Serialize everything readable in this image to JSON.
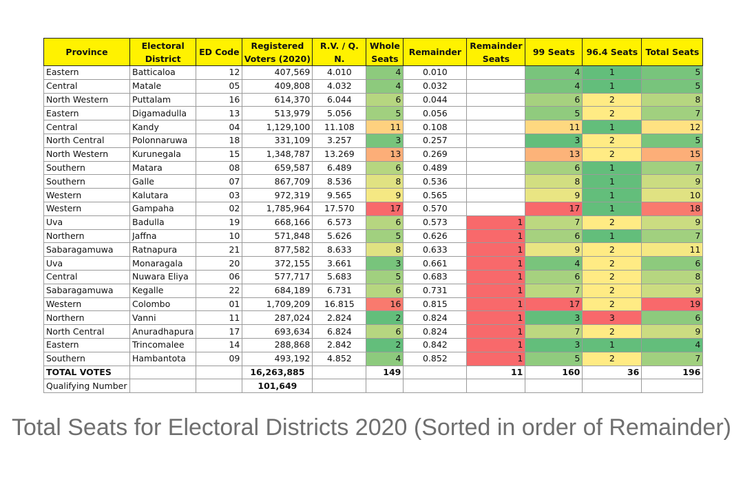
{
  "headers": {
    "province": "Province",
    "district": "Electoral District",
    "ed_code": "ED Code",
    "registered": "Registered Voters (2020)",
    "rvqn": "R.V. / Q. N.",
    "whole": "Whole Seats",
    "remainder": "Remainder",
    "remainder_seats": "Remainder Seats",
    "s99": "99 Seats",
    "s964": "96.4 Seats",
    "total": "Total Seats"
  },
  "rows": [
    {
      "province": "Eastern",
      "district": "Batticaloa",
      "code": "12",
      "voters": "407,569",
      "rvqn": "4.010",
      "whole": "4",
      "remainder": "0.010",
      "rem_seats": "",
      "s99": "4",
      "s964": "1",
      "total": "5"
    },
    {
      "province": "Central",
      "district": "Matale",
      "code": "05",
      "voters": "409,808",
      "rvqn": "4.032",
      "whole": "4",
      "remainder": "0.032",
      "rem_seats": "",
      "s99": "4",
      "s964": "1",
      "total": "5"
    },
    {
      "province": "North Western",
      "district": "Puttalam",
      "code": "16",
      "voters": "614,370",
      "rvqn": "6.044",
      "whole": "6",
      "remainder": "0.044",
      "rem_seats": "",
      "s99": "6",
      "s964": "2",
      "total": "8"
    },
    {
      "province": "Eastern",
      "district": "Digamadulla",
      "code": "13",
      "voters": "513,979",
      "rvqn": "5.056",
      "whole": "5",
      "remainder": "0.056",
      "rem_seats": "",
      "s99": "5",
      "s964": "2",
      "total": "7"
    },
    {
      "province": "Central",
      "district": "Kandy",
      "code": "04",
      "voters": "1,129,100",
      "rvqn": "11.108",
      "whole": "11",
      "remainder": "0.108",
      "rem_seats": "",
      "s99": "11",
      "s964": "1",
      "total": "12"
    },
    {
      "province": "North Central",
      "district": "Polonnaruwa",
      "code": "18",
      "voters": "331,109",
      "rvqn": "3.257",
      "whole": "3",
      "remainder": "0.257",
      "rem_seats": "",
      "s99": "3",
      "s964": "2",
      "total": "5"
    },
    {
      "province": "North Western",
      "district": "Kurunegala",
      "code": "15",
      "voters": "1,348,787",
      "rvqn": "13.269",
      "whole": "13",
      "remainder": "0.269",
      "rem_seats": "",
      "s99": "13",
      "s964": "2",
      "total": "15"
    },
    {
      "province": "Southern",
      "district": "Matara",
      "code": "08",
      "voters": "659,587",
      "rvqn": "6.489",
      "whole": "6",
      "remainder": "0.489",
      "rem_seats": "",
      "s99": "6",
      "s964": "1",
      "total": "7"
    },
    {
      "province": "Southern",
      "district": "Galle",
      "code": "07",
      "voters": "867,709",
      "rvqn": "8.536",
      "whole": "8",
      "remainder": "0.536",
      "rem_seats": "",
      "s99": "8",
      "s964": "1",
      "total": "9"
    },
    {
      "province": "Western",
      "district": "Kalutara",
      "code": "03",
      "voters": "972,319",
      "rvqn": "9.565",
      "whole": "9",
      "remainder": "0.565",
      "rem_seats": "",
      "s99": "9",
      "s964": "1",
      "total": "10"
    },
    {
      "province": "Western",
      "district": "Gampaha",
      "code": "02",
      "voters": "1,785,964",
      "rvqn": "17.570",
      "whole": "17",
      "remainder": "0.570",
      "rem_seats": "",
      "s99": "17",
      "s964": "1",
      "total": "18"
    },
    {
      "province": "Uva",
      "district": "Badulla",
      "code": "19",
      "voters": "668,166",
      "rvqn": "6.573",
      "whole": "6",
      "remainder": "0.573",
      "rem_seats": "1",
      "s99": "7",
      "s964": "2",
      "total": "9"
    },
    {
      "province": "Northern",
      "district": "Jaffna",
      "code": "10",
      "voters": "571,848",
      "rvqn": "5.626",
      "whole": "5",
      "remainder": "0.626",
      "rem_seats": "1",
      "s99": "6",
      "s964": "1",
      "total": "7"
    },
    {
      "province": "Sabaragamuwa",
      "district": "Ratnapura",
      "code": "21",
      "voters": "877,582",
      "rvqn": "8.633",
      "whole": "8",
      "remainder": "0.633",
      "rem_seats": "1",
      "s99": "9",
      "s964": "2",
      "total": "11"
    },
    {
      "province": "Uva",
      "district": "Monaragala",
      "code": "20",
      "voters": "372,155",
      "rvqn": "3.661",
      "whole": "3",
      "remainder": "0.661",
      "rem_seats": "1",
      "s99": "4",
      "s964": "2",
      "total": "6"
    },
    {
      "province": "Central",
      "district": "Nuwara Eliya",
      "code": "06",
      "voters": "577,717",
      "rvqn": "5.683",
      "whole": "5",
      "remainder": "0.683",
      "rem_seats": "1",
      "s99": "6",
      "s964": "2",
      "total": "8"
    },
    {
      "province": "Sabaragamuwa",
      "district": "Kegalle",
      "code": "22",
      "voters": "684,189",
      "rvqn": "6.731",
      "whole": "6",
      "remainder": "0.731",
      "rem_seats": "1",
      "s99": "7",
      "s964": "2",
      "total": "9"
    },
    {
      "province": "Western",
      "district": "Colombo",
      "code": "01",
      "voters": "1,709,209",
      "rvqn": "16.815",
      "whole": "16",
      "remainder": "0.815",
      "rem_seats": "1",
      "s99": "17",
      "s964": "2",
      "total": "19"
    },
    {
      "province": "Northern",
      "district": "Vanni",
      "code": "11",
      "voters": "287,024",
      "rvqn": "2.824",
      "whole": "2",
      "remainder": "0.824",
      "rem_seats": "1",
      "s99": "3",
      "s964": "3",
      "total": "6"
    },
    {
      "province": "North Central",
      "district": "Anuradhapura",
      "code": "17",
      "voters": "693,634",
      "rvqn": "6.824",
      "whole": "6",
      "remainder": "0.824",
      "rem_seats": "1",
      "s99": "7",
      "s964": "2",
      "total": "9"
    },
    {
      "province": "Eastern",
      "district": "Trincomalee",
      "code": "14",
      "voters": "288,868",
      "rvqn": "2.842",
      "whole": "2",
      "remainder": "0.842",
      "rem_seats": "1",
      "s99": "3",
      "s964": "1",
      "total": "4"
    },
    {
      "province": "Southern",
      "district": "Hambantota",
      "code": "09",
      "voters": "493,192",
      "rvqn": "4.852",
      "whole": "4",
      "remainder": "0.852",
      "rem_seats": "1",
      "s99": "5",
      "s964": "2",
      "total": "7"
    }
  ],
  "totals": {
    "label": "TOTAL VOTES",
    "voters": "16,263,885",
    "whole": "149",
    "rem_seats": "11",
    "s99": "160",
    "s964": "36",
    "total": "196"
  },
  "qualifying": {
    "label": "Qualifying Number",
    "value": "101,649"
  },
  "caption": "Total Seats for Electoral Districts 2020 (Sorted in order of Remainder)",
  "colors": {
    "header_bg": "#fff200",
    "scale_low": "#63be7b",
    "scale_mid": "#ffeb84",
    "scale_high": "#f8696b",
    "caption_text": "#6f6f6f"
  }
}
